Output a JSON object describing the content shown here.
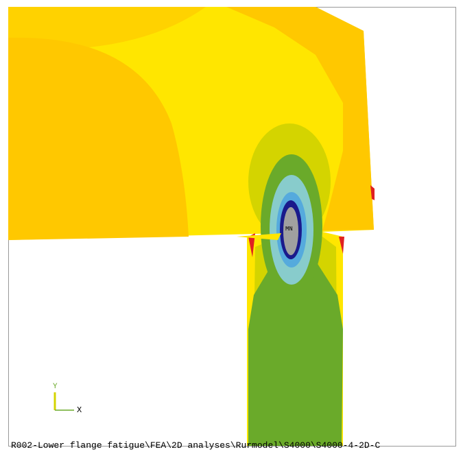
{
  "axis_triad": {
    "y_label": "Y",
    "x_label": "X"
  },
  "min_marker": "MN",
  "footer": {
    "path": "R002-Lower flange fatigue\\FEA\\2D analyses\\Rurmodel\\S4000\\S4000-4-2D-C"
  }
}
